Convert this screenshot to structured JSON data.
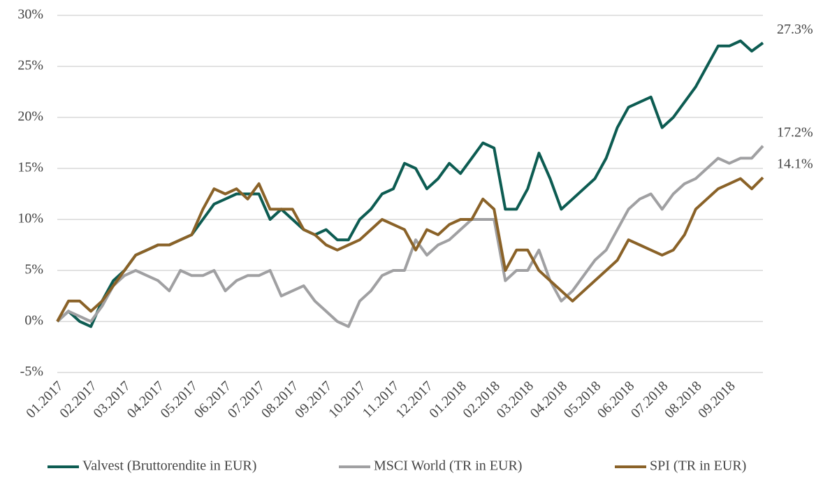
{
  "chart_data": {
    "type": "line",
    "categories": [
      "01.2017",
      null,
      null,
      "02.2017",
      null,
      null,
      "03.2017",
      null,
      null,
      "04.2017",
      null,
      null,
      "05.2017",
      null,
      null,
      "06.2017",
      null,
      null,
      "07.2017",
      null,
      null,
      "08.2017",
      null,
      null,
      "09.2017",
      null,
      null,
      "10.2017",
      null,
      null,
      "11.2017",
      null,
      null,
      "12.2017",
      null,
      null,
      "01.2018",
      null,
      null,
      "02.2018",
      null,
      null,
      "03.2018",
      null,
      null,
      "04.2018",
      null,
      null,
      "05.2018",
      null,
      null,
      "06.2018",
      null,
      null,
      "07.2018",
      null,
      null,
      "08.2018",
      null,
      null,
      "09.2018",
      null,
      null,
      null
    ],
    "series": [
      {
        "name": "Valvest (Bruttorendite in EUR)",
        "color": "#0d5c52",
        "end_label": "27.3%",
        "values": [
          0,
          1,
          0,
          -0.5,
          2,
          4,
          5,
          6.5,
          7,
          7.5,
          7.5,
          8,
          8.5,
          10,
          11.5,
          12,
          12.5,
          12.5,
          12.5,
          10,
          11,
          10,
          9,
          8.5,
          9,
          8,
          8,
          10,
          11,
          12.5,
          13,
          15.5,
          15,
          13,
          14,
          15.5,
          14.5,
          16,
          17.5,
          17,
          11,
          11,
          13,
          16.5,
          14,
          11,
          12,
          13,
          14,
          16,
          19,
          21,
          21.5,
          22,
          19,
          20,
          21.5,
          23,
          25,
          27,
          27,
          27.5,
          26.5,
          27.3
        ]
      },
      {
        "name": "MSCI World (TR in EUR)",
        "color": "#a0a0a2",
        "end_label": "17.2%",
        "values": [
          0,
          1,
          0.5,
          0,
          1.5,
          3.5,
          4.5,
          5,
          4.5,
          4,
          3,
          5,
          4.5,
          4.5,
          5,
          3,
          4,
          4.5,
          4.5,
          5,
          2.5,
          3,
          3.5,
          2,
          1,
          0,
          -0.5,
          2,
          3,
          4.5,
          5,
          5,
          8,
          6.5,
          7.5,
          8,
          9,
          10,
          10,
          10,
          4,
          5,
          5,
          7,
          4,
          2,
          3,
          4.5,
          6,
          7,
          9,
          11,
          12,
          12.5,
          11,
          12.5,
          13.5,
          14,
          15,
          16,
          15.5,
          16,
          16,
          17.2
        ]
      },
      {
        "name": "SPI (TR in EUR)",
        "color": "#8a6228",
        "end_label": "14.1%",
        "values": [
          0,
          2,
          2,
          1,
          2,
          3.5,
          5,
          6.5,
          7,
          7.5,
          7.5,
          8,
          8.5,
          11,
          13,
          12.5,
          13,
          12,
          13.5,
          11,
          11,
          11,
          9,
          8.5,
          7.5,
          7,
          7.5,
          8,
          9,
          10,
          9.5,
          9,
          7,
          9,
          8.5,
          9.5,
          10,
          10,
          12,
          11,
          5,
          7,
          7,
          5,
          4,
          3,
          2,
          3,
          4,
          5,
          6,
          8,
          7.5,
          7,
          6.5,
          7,
          8.5,
          11,
          12,
          13,
          13.5,
          14,
          13,
          14.1
        ]
      }
    ],
    "ylim": [
      -5,
      30
    ],
    "yticks": [
      {
        "value": -5,
        "label": "-5%"
      },
      {
        "value": 0,
        "label": "0%"
      },
      {
        "value": 5,
        "label": "5%"
      },
      {
        "value": 10,
        "label": "10%"
      },
      {
        "value": 15,
        "label": "15%"
      },
      {
        "value": 20,
        "label": "20%"
      },
      {
        "value": 25,
        "label": "25%"
      },
      {
        "value": 30,
        "label": "30%"
      }
    ],
    "grid": true,
    "legend": "bottom"
  }
}
